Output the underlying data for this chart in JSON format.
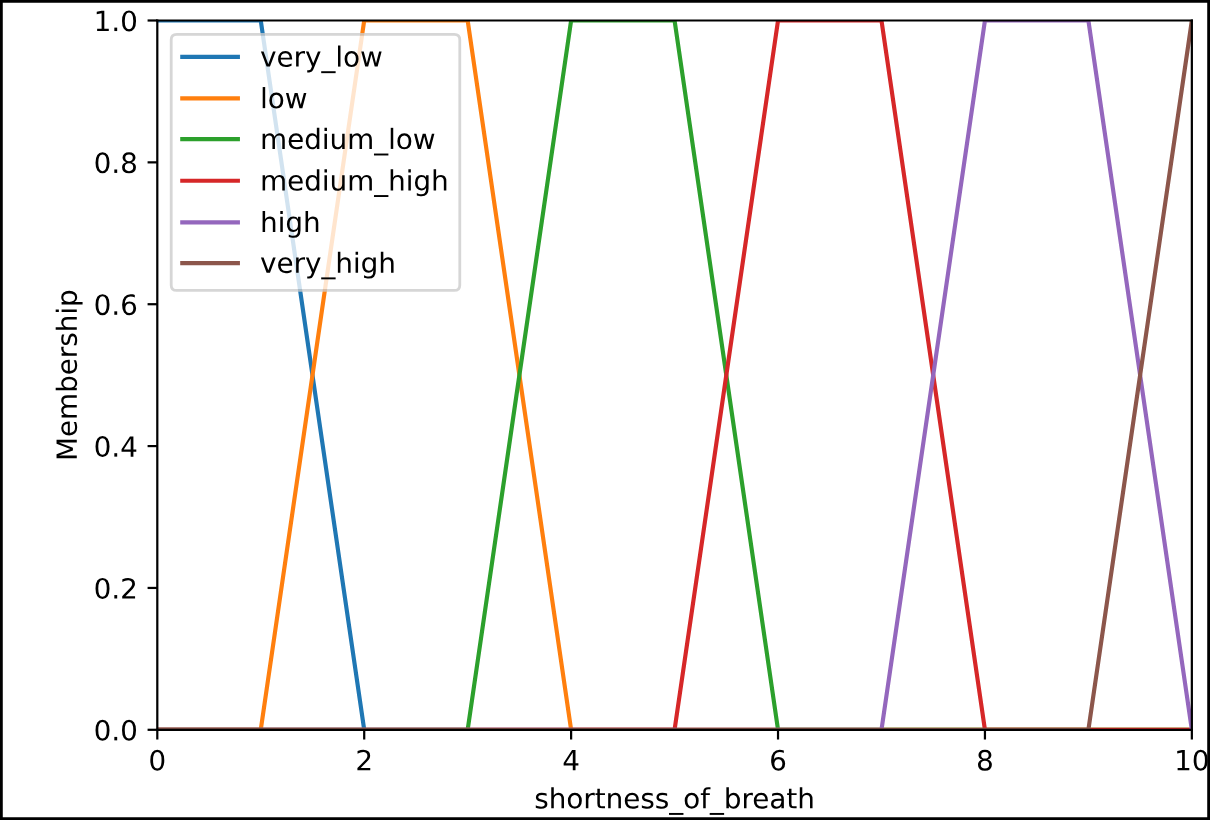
{
  "chart_data": {
    "type": "line",
    "xlabel": "shortness_of_breath",
    "ylabel": "Membership",
    "xlim": [
      0,
      10
    ],
    "ylim": [
      0,
      1.0
    ],
    "xticks": [
      0,
      2,
      4,
      6,
      8,
      10
    ],
    "yticks": [
      {
        "value": 0,
        "label": "0.0"
      },
      {
        "value": 0.2,
        "label": "0.2"
      },
      {
        "value": 0.4,
        "label": "0.4"
      },
      {
        "value": 0.6,
        "label": "0.6"
      },
      {
        "value": 0.8,
        "label": "0.8"
      },
      {
        "value": 1.0,
        "label": "1.0"
      }
    ],
    "legend": "top left",
    "grid": false,
    "series": [
      {
        "name": "very_low",
        "color": "#1f77b4",
        "x": [
          0,
          1,
          2
        ],
        "values": [
          1,
          1,
          0
        ]
      },
      {
        "name": "low",
        "color": "#ff7f0e",
        "x": [
          0,
          1,
          2,
          3,
          4,
          10
        ],
        "values": [
          0,
          0,
          1,
          1,
          0,
          0
        ]
      },
      {
        "name": "medium_low",
        "color": "#2ca02c",
        "x": [
          0,
          3,
          4,
          5,
          6,
          10
        ],
        "values": [
          0,
          0,
          1,
          1,
          0,
          0
        ]
      },
      {
        "name": "medium_high",
        "color": "#d62728",
        "x": [
          0,
          5,
          6,
          7,
          8,
          10
        ],
        "values": [
          0,
          0,
          1,
          1,
          0,
          0
        ]
      },
      {
        "name": "high",
        "color": "#9467bd",
        "x": [
          0,
          7,
          8,
          9,
          10
        ],
        "values": [
          0,
          0,
          1,
          1,
          0
        ]
      },
      {
        "name": "very_high",
        "color": "#8c564b",
        "x": [
          0,
          9,
          10
        ],
        "values": [
          0,
          0,
          1
        ]
      }
    ]
  }
}
